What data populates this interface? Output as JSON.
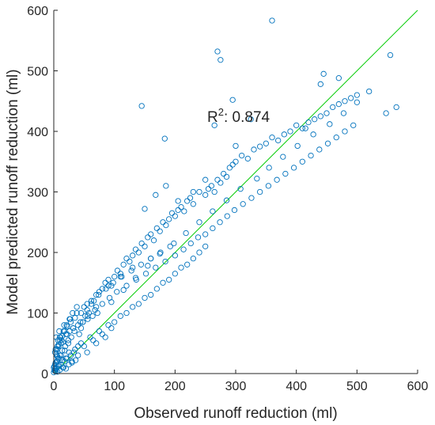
{
  "chart_data": {
    "type": "scatter",
    "title": "",
    "xlabel": "Observed runoff reduction (ml)",
    "ylabel": "Model predicted runoff reduction (ml)",
    "xlim": [
      0,
      600
    ],
    "ylim": [
      0,
      600
    ],
    "xticks": [
      0,
      100,
      200,
      300,
      400,
      500,
      600
    ],
    "yticks": [
      0,
      100,
      200,
      300,
      400,
      500,
      600
    ],
    "grid": false,
    "annotation": {
      "base": "R",
      "superscript": "2",
      "text": ": 0.874"
    },
    "colors": {
      "points": "#0072BD",
      "fit_line": "#00CC00",
      "axis": "#262626"
    },
    "fit_line": {
      "x": [
        0,
        600
      ],
      "y": [
        0,
        600
      ]
    },
    "series": [
      {
        "marker": "circle-open",
        "x": [
          2,
          4,
          6,
          8,
          10,
          12,
          15,
          18,
          20,
          22,
          25,
          28,
          30,
          33,
          36,
          40,
          3,
          5,
          7,
          9,
          11,
          14,
          16,
          19,
          21,
          24,
          26,
          29,
          31,
          34,
          38,
          42,
          45,
          48,
          52,
          55,
          58,
          62,
          66,
          70,
          75,
          80,
          85,
          90,
          95,
          100,
          105,
          110,
          115,
          120,
          125,
          130,
          135,
          140,
          145,
          150,
          155,
          160,
          165,
          170,
          175,
          180,
          185,
          190,
          195,
          200,
          205,
          210,
          215,
          220,
          225,
          230,
          240,
          250,
          255,
          260,
          265,
          270,
          275,
          280,
          285,
          290,
          295,
          300,
          310,
          320,
          330,
          340,
          350,
          360,
          370,
          380,
          390,
          400,
          410,
          420,
          430,
          440,
          450,
          460,
          470,
          480,
          490,
          500,
          548,
          565,
          5,
          8,
          12,
          16,
          20,
          25,
          30,
          35,
          40,
          45,
          50,
          55,
          60,
          65,
          70,
          75,
          80,
          85,
          90,
          95,
          100,
          110,
          120,
          130,
          140,
          150,
          160,
          170,
          180,
          190,
          200,
          210,
          220,
          230,
          240,
          250,
          4,
          6,
          9,
          13,
          17,
          22,
          27,
          32,
          38,
          44,
          50,
          56,
          62,
          68,
          74,
          80,
          86,
          92,
          98,
          104,
          112,
          120,
          128,
          136,
          144,
          152,
          160,
          168,
          176,
          184,
          192,
          200,
          214,
          226,
          238,
          250,
          262,
          274,
          286,
          298,
          312,
          326,
          340,
          354,
          368,
          382,
          396,
          410,
          424,
          438,
          452,
          466,
          480,
          494,
          0,
          1,
          2,
          3,
          0,
          1,
          2,
          4,
          6,
          3,
          7,
          10,
          14,
          2,
          4,
          6,
          8,
          12,
          18,
          24,
          10,
          15,
          20,
          26,
          32,
          40,
          48,
          56,
          64,
          72,
          145,
          183,
          270,
          275,
          295,
          360,
          555,
          415,
          445,
          470,
          440,
          325,
          300,
          265,
          150,
          168,
          185,
          205,
          230,
          250,
          160,
          130,
          110,
          90,
          70,
          55,
          45,
          35,
          28,
          22,
          18,
          14,
          10,
          8,
          6,
          4,
          95,
          115,
          135,
          155,
          175,
          198,
          218,
          240,
          262,
          285,
          308,
          335,
          355,
          378,
          402,
          428,
          455,
          478,
          500,
          520
        ],
        "y": [
          5,
          8,
          3,
          12,
          6,
          15,
          10,
          20,
          8,
          25,
          15,
          30,
          18,
          35,
          22,
          45,
          40,
          30,
          55,
          25,
          60,
          38,
          70,
          45,
          80,
          50,
          90,
          60,
          100,
          70,
          110,
          65,
          75,
          85,
          95,
          105,
          100,
          115,
          120,
          110,
          135,
          140,
          150,
          155,
          145,
          160,
          170,
          165,
          180,
          190,
          185,
          195,
          205,
          200,
          215,
          210,
          225,
          230,
          220,
          240,
          235,
          250,
          245,
          255,
          265,
          260,
          270,
          275,
          268,
          285,
          290,
          280,
          300,
          295,
          305,
          310,
          300,
          320,
          315,
          330,
          325,
          340,
          345,
          350,
          360,
          355,
          370,
          375,
          380,
          390,
          385,
          395,
          400,
          410,
          405,
          415,
          420,
          425,
          430,
          440,
          445,
          450,
          455,
          460,
          430,
          440,
          20,
          15,
          30,
          10,
          25,
          35,
          20,
          40,
          30,
          50,
          45,
          35,
          60,
          55,
          50,
          70,
          65,
          60,
          80,
          75,
          85,
          95,
          100,
          110,
          115,
          125,
          130,
          140,
          150,
          155,
          165,
          175,
          180,
          190,
          200,
          210,
          60,
          45,
          70,
          55,
          80,
          65,
          90,
          75,
          100,
          85,
          110,
          95,
          120,
          105,
          130,
          115,
          140,
          125,
          150,
          135,
          160,
          145,
          170,
          155,
          180,
          165,
          190,
          175,
          200,
          185,
          210,
          195,
          205,
          215,
          225,
          230,
          240,
          250,
          260,
          270,
          280,
          290,
          300,
          310,
          320,
          330,
          340,
          350,
          360,
          370,
          380,
          390,
          400,
          410,
          2,
          5,
          8,
          4,
          10,
          12,
          15,
          9,
          20,
          18,
          25,
          30,
          22,
          35,
          40,
          28,
          45,
          50,
          38,
          55,
          60,
          52,
          65,
          70,
          75,
          80,
          85,
          90,
          95,
          100,
          442,
          388,
          532,
          518,
          452,
          583,
          526,
          405,
          495,
          488,
          478,
          420,
          376,
          410,
          272,
          295,
          310,
          285,
          300,
          320,
          190,
          175,
          160,
          145,
          130,
          115,
          100,
          92,
          85,
          78,
          70,
          62,
          55,
          48,
          40,
          32,
          118,
          138,
          158,
          178,
          198,
          215,
          232,
          250,
          268,
          286,
          305,
          322,
          340,
          358,
          376,
          395,
          412,
          430,
          448,
          466
        ]
      }
    ]
  }
}
